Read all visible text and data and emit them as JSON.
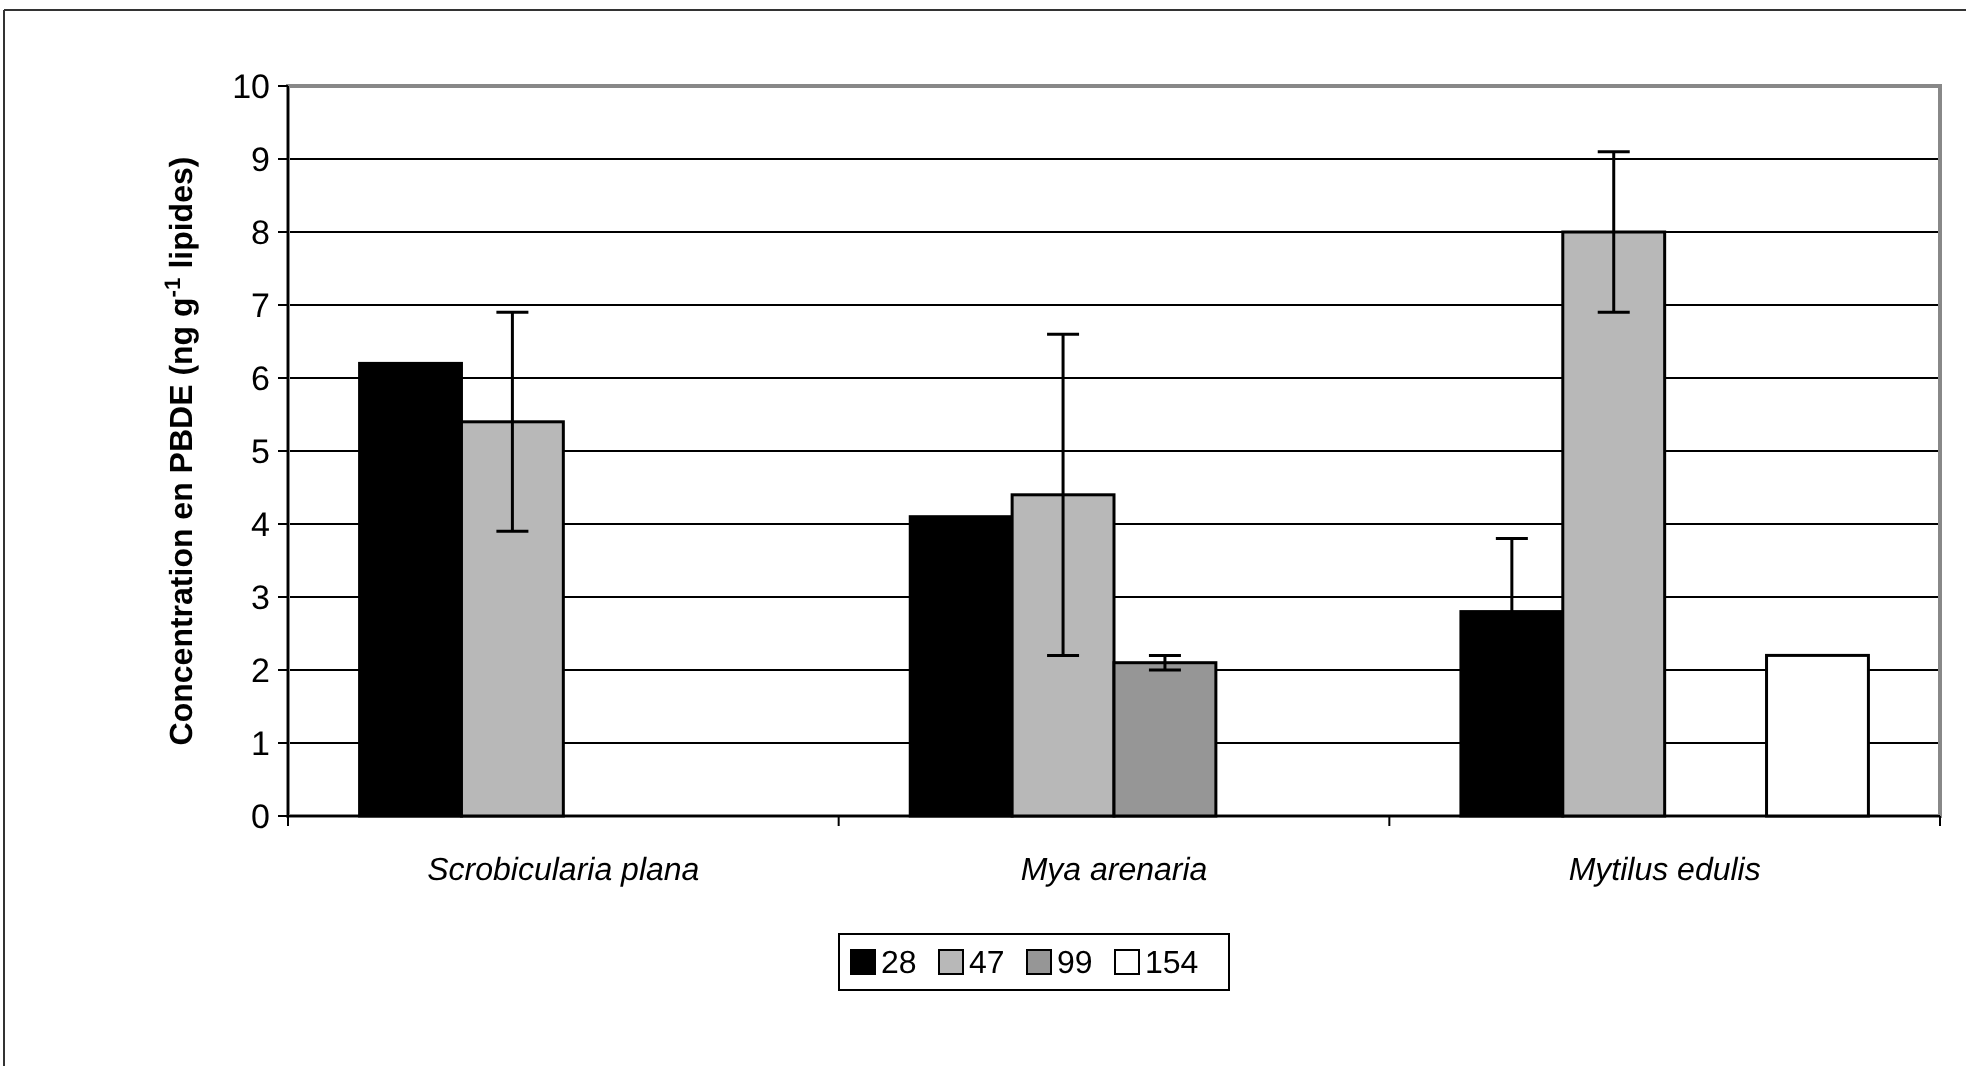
{
  "chart_data": {
    "type": "bar",
    "ylabel": "Concentration en PBDE (ng g$^{-1}$ lipides)",
    "categories": [
      "Scrobicularia plana",
      "Mya arenaria",
      "Mytilus edulis"
    ],
    "series": [
      {
        "name": "28",
        "color": "#000000",
        "values": [
          6.2,
          4.1,
          2.8
        ],
        "errors": [
          null,
          null,
          1.0
        ]
      },
      {
        "name": "47",
        "color": "#b8b8b8",
        "values": [
          5.4,
          4.4,
          8.0
        ],
        "errors": [
          1.5,
          2.2,
          1.1
        ]
      },
      {
        "name": "99",
        "color": "#969696",
        "values": [
          null,
          2.1,
          null
        ],
        "errors": [
          null,
          0.1,
          null
        ]
      },
      {
        "name": "154",
        "color": "#ffffff",
        "values": [
          null,
          null,
          2.2
        ]
      }
    ],
    "ylim": [
      0,
      10
    ],
    "yticks": [
      0,
      1,
      2,
      3,
      4,
      5,
      6,
      7,
      8,
      9,
      10
    ],
    "grid": "y",
    "legend": "bottom"
  }
}
